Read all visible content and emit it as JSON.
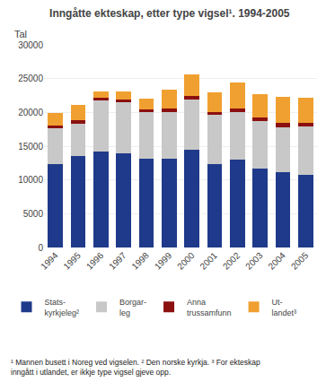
{
  "chart_data": {
    "type": "bar",
    "title": "Inngåtte ekteskap, etter type vigsel¹. 1994-2005",
    "ylabel": "Tal",
    "categories": [
      "1994",
      "1995",
      "1996",
      "1997",
      "1998",
      "1999",
      "2000",
      "2001",
      "2002",
      "2003",
      "2004",
      "2005"
    ],
    "series": [
      {
        "name": "Stats-\nkyrkjeleg²",
        "color": "#1f3a8a",
        "values": [
          12400,
          13500,
          14200,
          13900,
          13200,
          13100,
          14500,
          12300,
          13000,
          11700,
          11200,
          10700
        ]
      },
      {
        "name": "Borgar-\nleg",
        "color": "#c8c8c8",
        "values": [
          5200,
          4800,
          7600,
          7600,
          6800,
          7000,
          7400,
          7300,
          7000,
          7000,
          6600,
          7200
        ]
      },
      {
        "name": "Anna\ntrussamfunn",
        "color": "#8b1010",
        "values": [
          400,
          500,
          400,
          400,
          400,
          500,
          500,
          500,
          600,
          500,
          600,
          600
        ]
      },
      {
        "name": "Ut-\nlandet³",
        "color": "#f0a030",
        "values": [
          1900,
          2300,
          900,
          1200,
          1700,
          2700,
          3200,
          2900,
          3800,
          3500,
          3900,
          3700
        ]
      }
    ],
    "stacked": true,
    "ylim": [
      0,
      30000
    ],
    "yticks": [
      0,
      5000,
      10000,
      15000,
      20000,
      25000,
      30000
    ],
    "grid": true,
    "legend": "bottom",
    "annotations": [
      "¹ Mannen busett i Noreg ved vigselen. ² Den norske kyrkja. ³ For ekteskap\ninngått i utlandet, er ikkje type vigsel gjeve opp."
    ]
  }
}
